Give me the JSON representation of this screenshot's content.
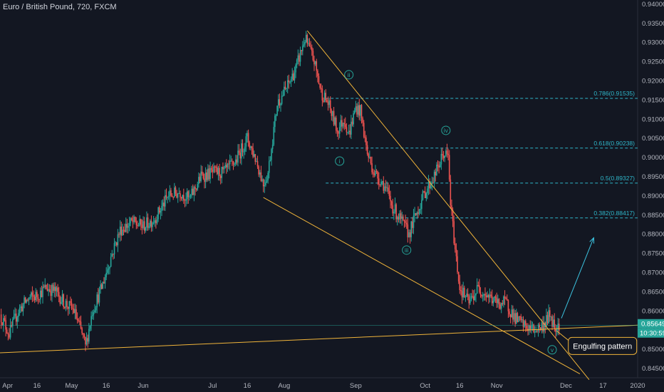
{
  "header": {
    "symbol_title": "Euro / British Pound, 720, FXCM"
  },
  "colors": {
    "background": "#131722",
    "up": "#26a69a",
    "down": "#ef5350",
    "trendline": "#f0b43a",
    "fib_line": "#2fb6c9",
    "arrow": "#3cc3e0",
    "axis_text": "#b2b5be",
    "price_badge": "#26a69a"
  },
  "chart_data": {
    "type": "candlestick",
    "title": "Euro / British Pound, 720, FXCM",
    "xlim": [
      "2019-03-31",
      "2020-01-01"
    ],
    "ylim": [
      0.8425,
      0.941
    ],
    "y_ticks": [
      "0.94000",
      "0.93500",
      "0.93000",
      "0.92500",
      "0.92000",
      "0.91500",
      "0.91000",
      "0.90500",
      "0.90000",
      "0.89500",
      "0.89000",
      "0.88500",
      "0.88000",
      "0.87500",
      "0.87000",
      "0.86500",
      "0.86000",
      "0.85500",
      "0.85000",
      "0.84500"
    ],
    "x_ticks": [
      {
        "date": "2019-04-01",
        "label": "Apr"
      },
      {
        "date": "2019-04-16",
        "label": "16"
      },
      {
        "date": "2019-05-01",
        "label": "May"
      },
      {
        "date": "2019-05-16",
        "label": "16"
      },
      {
        "date": "2019-06-01",
        "label": "Jun"
      },
      {
        "date": "2019-07-01",
        "label": "Jul"
      },
      {
        "date": "2019-07-16",
        "label": "16"
      },
      {
        "date": "2019-08-01",
        "label": "Aug"
      },
      {
        "date": "2019-09-01",
        "label": "Sep"
      },
      {
        "date": "2019-10-01",
        "label": "Oct"
      },
      {
        "date": "2019-10-16",
        "label": "16"
      },
      {
        "date": "2019-11-01",
        "label": "Nov"
      },
      {
        "date": "2019-12-01",
        "label": "Dec"
      },
      {
        "date": "2019-12-17",
        "label": "17"
      },
      {
        "date": "2020-01-01",
        "label": "2020"
      }
    ],
    "price_path": [
      [
        "2019-03-31",
        0.859
      ],
      [
        "2019-04-04",
        0.854
      ],
      [
        "2019-04-08",
        0.86
      ],
      [
        "2019-04-12",
        0.863
      ],
      [
        "2019-04-16",
        0.864
      ],
      [
        "2019-04-20",
        0.866
      ],
      [
        "2019-04-24",
        0.865
      ],
      [
        "2019-04-28",
        0.862
      ],
      [
        "2019-05-02",
        0.86
      ],
      [
        "2019-05-06",
        0.853
      ],
      [
        "2019-05-07",
        0.8505
      ],
      [
        "2019-05-10",
        0.86
      ],
      [
        "2019-05-14",
        0.866
      ],
      [
        "2019-05-18",
        0.874
      ],
      [
        "2019-05-22",
        0.881
      ],
      [
        "2019-05-27",
        0.883
      ],
      [
        "2019-06-01",
        0.882
      ],
      [
        "2019-06-06",
        0.884
      ],
      [
        "2019-06-12",
        0.89
      ],
      [
        "2019-06-17",
        0.891
      ],
      [
        "2019-06-21",
        0.889
      ],
      [
        "2019-06-26",
        0.895
      ],
      [
        "2019-07-01",
        0.896
      ],
      [
        "2019-07-06",
        0.896
      ],
      [
        "2019-07-11",
        0.899
      ],
      [
        "2019-07-16",
        0.905
      ],
      [
        "2019-07-20",
        0.899
      ],
      [
        "2019-07-23",
        0.893
      ],
      [
        "2019-07-25",
        0.896
      ],
      [
        "2019-07-29",
        0.914
      ],
      [
        "2019-08-02",
        0.918
      ],
      [
        "2019-08-06",
        0.923
      ],
      [
        "2019-08-10",
        0.931
      ],
      [
        "2019-08-14",
        0.925
      ],
      [
        "2019-08-17",
        0.917
      ],
      [
        "2019-08-20",
        0.914
      ],
      [
        "2019-08-24",
        0.907
      ],
      [
        "2019-08-27",
        0.91
      ],
      [
        "2019-08-29",
        0.906
      ],
      [
        "2019-09-01",
        0.913
      ],
      [
        "2019-09-03",
        0.912
      ],
      [
        "2019-09-06",
        0.901
      ],
      [
        "2019-09-09",
        0.896
      ],
      [
        "2019-09-13",
        0.893
      ],
      [
        "2019-09-17",
        0.887
      ],
      [
        "2019-09-21",
        0.883
      ],
      [
        "2019-09-24",
        0.88
      ],
      [
        "2019-09-27",
        0.885
      ],
      [
        "2019-10-01",
        0.891
      ],
      [
        "2019-10-05",
        0.895
      ],
      [
        "2019-10-09",
        0.901
      ],
      [
        "2019-10-11",
        0.9
      ],
      [
        "2019-10-12",
        0.888
      ],
      [
        "2019-10-14",
        0.876
      ],
      [
        "2019-10-16",
        0.866
      ],
      [
        "2019-10-20",
        0.862
      ],
      [
        "2019-10-24",
        0.866
      ],
      [
        "2019-10-28",
        0.864
      ],
      [
        "2019-11-01",
        0.862
      ],
      [
        "2019-11-05",
        0.862
      ],
      [
        "2019-11-09",
        0.858
      ],
      [
        "2019-11-13",
        0.856
      ],
      [
        "2019-11-17",
        0.855
      ],
      [
        "2019-11-21",
        0.856
      ],
      [
        "2019-11-24",
        0.859
      ],
      [
        "2019-11-26",
        0.856
      ],
      [
        "2019-11-28",
        0.8565
      ]
    ],
    "trendlines": [
      {
        "from": [
          "2019-08-11",
          0.933
        ],
        "to": [
          "2019-12-11",
          0.842
        ]
      },
      {
        "from": [
          "2019-07-23",
          0.8895
        ],
        "to": [
          "2019-12-07",
          0.8435
        ]
      },
      {
        "from": [
          "2019-03-31",
          0.849
        ],
        "to": [
          "2020-01-01",
          0.8562
        ]
      }
    ],
    "fib_levels": [
      {
        "label": "0.786(0.91535)",
        "value": 0.91535
      },
      {
        "label": "0.618(0.90238)",
        "value": 0.90238
      },
      {
        "label": "0.5(0.89327)",
        "value": 0.89327
      },
      {
        "label": "0.382(0.88417)",
        "value": 0.88417
      }
    ],
    "fib_start": "2019-08-19",
    "wave_labels": [
      {
        "text": "ii",
        "date": "2019-08-29",
        "value": 0.9215
      },
      {
        "text": "i",
        "date": "2019-08-25",
        "value": 0.899
      },
      {
        "text": "iv",
        "date": "2019-10-10",
        "value": 0.907
      },
      {
        "text": "iii",
        "date": "2019-09-23",
        "value": 0.8758
      },
      {
        "text": "v",
        "date": "2019-11-25",
        "value": 0.8498
      }
    ],
    "arrow": {
      "from": [
        "2019-11-29",
        0.858
      ],
      "to": [
        "2019-12-13",
        0.879
      ]
    },
    "annotation": {
      "text": "Engulfing pattern",
      "date": "2019-12-02",
      "value": 0.8508
    },
    "last_price": {
      "label": "0.85649",
      "value": 0.85649
    },
    "countdown": "10:30:59",
    "current_price_line": 0.8562
  }
}
